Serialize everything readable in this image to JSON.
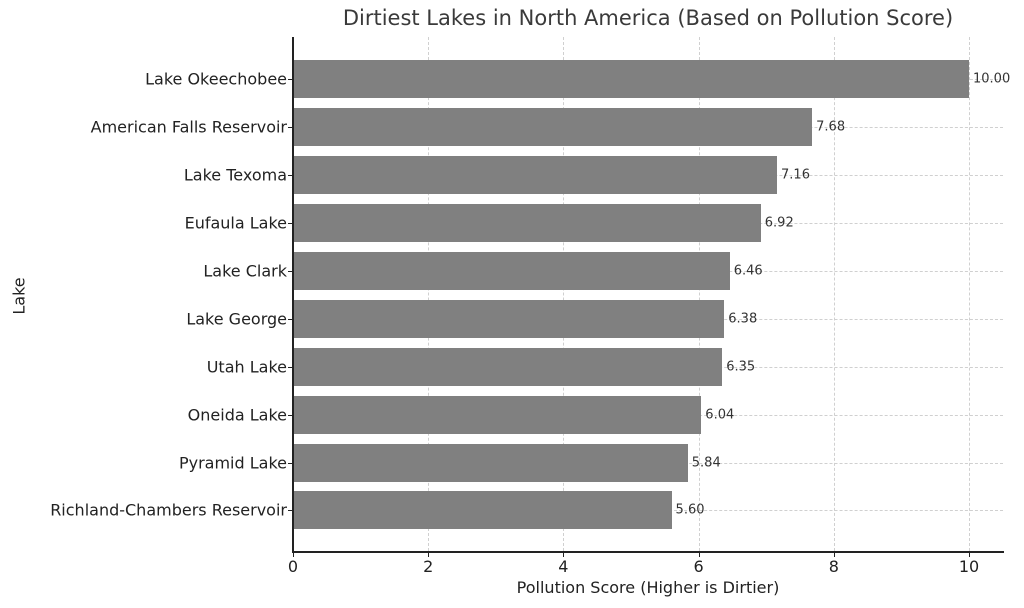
{
  "chart_data": {
    "type": "bar",
    "orientation": "horizontal",
    "title": "Dirtiest Lakes in North America (Based on Pollution Score)",
    "xlabel": "Pollution Score (Higher is Dirtier)",
    "ylabel": "Lake",
    "categories": [
      "Lake Okeechobee",
      "American Falls Reservoir",
      "Lake Texoma",
      "Eufaula Lake",
      "Lake Clark",
      "Lake George",
      "Utah Lake",
      "Oneida Lake",
      "Pyramid Lake",
      "Richland-Chambers Reservoir"
    ],
    "values": [
      10.0,
      7.68,
      7.16,
      6.92,
      6.46,
      6.38,
      6.35,
      6.04,
      5.84,
      5.6
    ],
    "value_labels": [
      "10.00",
      "7.68",
      "7.16",
      "6.92",
      "6.46",
      "6.38",
      "6.35",
      "6.04",
      "5.84",
      "5.60"
    ],
    "xlim": [
      0,
      10.5
    ],
    "xticks": [
      "0",
      "2",
      "4",
      "6",
      "8",
      "10"
    ],
    "grid": true,
    "bar_color": "#808080",
    "legend": null
  }
}
